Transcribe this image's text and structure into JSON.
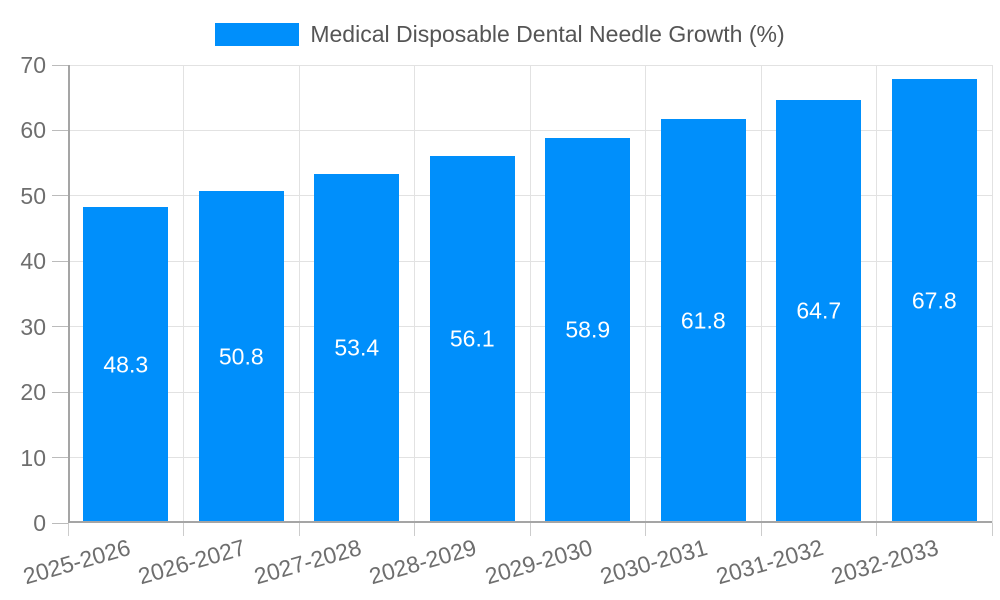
{
  "chart_data": {
    "type": "bar",
    "title": "Medical Disposable Dental Needle Growth (%)",
    "legend": [
      "Medical Disposable Dental Needle Growth (%)"
    ],
    "legend_position": "top",
    "categories": [
      "2025-2026",
      "2026-2027",
      "2027-2028",
      "2028-2029",
      "2029-2030",
      "2030-2031",
      "2031-2032",
      "2032-2033"
    ],
    "series": [
      {
        "name": "Medical Disposable Dental Needle Growth (%)",
        "values": [
          48.3,
          50.8,
          53.4,
          56.1,
          58.9,
          61.8,
          64.7,
          67.8
        ]
      }
    ],
    "value_labels": [
      "48.3",
      "50.8",
      "53.4",
      "56.1",
      "58.9",
      "61.8",
      "64.7",
      "67.8"
    ],
    "xlabel": "",
    "ylabel": "",
    "ylim": [
      0,
      70
    ],
    "ytick_step": 10,
    "yticks": [
      "0",
      "10",
      "20",
      "30",
      "40",
      "50",
      "60",
      "70"
    ],
    "grid": true,
    "colors": {
      "bar": "#008ffb",
      "value_label": "#ffffff",
      "axis_line": "#a5a5a5",
      "grid_line": "#e2e2e2",
      "axis_label": "#6e6e6e",
      "legend_text": "#555555"
    }
  }
}
